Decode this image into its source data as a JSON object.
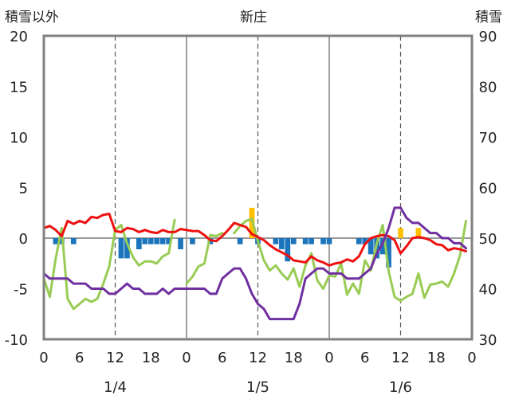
{
  "chart_data": {
    "type": "line",
    "title": "新庄",
    "left_axis_label": "積雪以外",
    "right_axis_label": "積雪",
    "left_ylim": [
      -10,
      20
    ],
    "right_ylim": [
      30,
      90
    ],
    "left_ticks": [
      "20",
      "15",
      "10",
      "5",
      "0",
      "-5",
      "-10"
    ],
    "right_ticks": [
      "90",
      "80",
      "70",
      "60",
      "50",
      "40",
      "30"
    ],
    "x_tick_labels": [
      "0",
      "6",
      "12",
      "18",
      "0",
      "6",
      "12",
      "18",
      "0",
      "6",
      "12",
      "18",
      "0"
    ],
    "date_labels": [
      "1/4",
      "1/5",
      "1/6"
    ],
    "grid": "vertical dashed at 12h, solid at 0h",
    "colors": {
      "red": "#ee1111",
      "green": "#99cc55",
      "purple": "#7030a0",
      "blue": "#1c75bc",
      "yellow": "#ffc000",
      "frame": "#808080",
      "zero_line": "#9a9a9a"
    },
    "series": [
      {
        "color_key": "red",
        "x": [
          0,
          1,
          2,
          3,
          4,
          5,
          6,
          7,
          8,
          9,
          10,
          11,
          12,
          13,
          14,
          15,
          16,
          17,
          18,
          19,
          20,
          21,
          22,
          23,
          24,
          25,
          26,
          27,
          28,
          29,
          30,
          31,
          32,
          33,
          34,
          35,
          36,
          37,
          38,
          39,
          40,
          41,
          42,
          43,
          44,
          45,
          46,
          47,
          48,
          49,
          50,
          51,
          52,
          53,
          54,
          55,
          56,
          57,
          58,
          59,
          60,
          61,
          62,
          63,
          64,
          65,
          66,
          67,
          68,
          69,
          70,
          71
        ],
        "values": [
          1.0,
          1.2,
          0.8,
          0.2,
          1.7,
          1.4,
          1.7,
          1.5,
          2.1,
          2.0,
          2.3,
          2.4,
          0.7,
          0.6,
          1.0,
          0.9,
          0.6,
          0.8,
          0.6,
          0.5,
          0.8,
          0.6,
          0.6,
          0.9,
          0.8,
          0.7,
          0.7,
          0.3,
          -0.2,
          -0.3,
          0.2,
          0.8,
          1.5,
          1.3,
          1.1,
          0.4,
          0.1,
          -0.2,
          -0.7,
          -1.1,
          -1.4,
          -1.7,
          -2.2,
          -2.3,
          -2.4,
          -1.8,
          -2.2,
          -2.4,
          -2.7,
          -2.5,
          -2.4,
          -2.1,
          -2.3,
          -1.8,
          -0.6,
          0.0,
          0.2,
          0.3,
          0.2,
          -0.2,
          -1.5,
          -0.8,
          0.0,
          0.1,
          0.0,
          -0.2,
          -0.6,
          -0.7,
          -1.2,
          -1.0,
          -1.1,
          -1.3
        ]
      },
      {
        "color_key": "green",
        "segments": [
          {
            "x": [
              0,
              1,
              2,
              3,
              4,
              5,
              6,
              7,
              8,
              9,
              10,
              11,
              12,
              13,
              14,
              15,
              16,
              17,
              18,
              19,
              20,
              21,
              22
            ],
            "values": [
              -4.0,
              -5.8,
              -2.0,
              1.0,
              -6.0,
              -7.0,
              -6.5,
              -6.0,
              -6.3,
              -6.0,
              -4.5,
              -2.8,
              0.8,
              1.3,
              -0.5,
              -1.9,
              -2.7,
              -2.3,
              -2.3,
              -2.5,
              -1.8,
              -1.5,
              1.8
            ]
          },
          {
            "x": [
              24,
              25,
              26,
              27,
              28,
              29,
              30
            ],
            "values": [
              -4.5,
              -3.8,
              -2.8,
              -2.5,
              0.3,
              0.2,
              0.5
            ]
          },
          {
            "x": [
              32,
              33,
              34,
              35,
              36,
              37,
              38,
              39,
              40,
              41,
              42,
              43,
              44,
              45,
              46,
              47,
              48,
              49,
              50,
              51,
              52,
              53,
              54,
              55,
              56,
              57,
              58,
              59,
              60,
              61,
              62,
              63,
              64,
              65,
              66,
              67,
              68,
              69,
              70,
              71
            ],
            "values": [
              0.5,
              1.2,
              1.7,
              1.9,
              -0.3,
              -2.2,
              -3.2,
              -2.7,
              -3.5,
              -4.1,
              -3.0,
              -4.8,
              -2.7,
              -1.5,
              -4.2,
              -5.0,
              -3.7,
              -3.8,
              -2.5,
              -5.6,
              -4.5,
              -5.5,
              -2.2,
              -3.2,
              -0.5,
              1.3,
              -3.3,
              -5.8,
              -6.2,
              -5.8,
              -5.5,
              -3.5,
              -5.9,
              -4.6,
              -4.5,
              -4.3,
              -4.8,
              -3.5,
              -1.7,
              1.7
            ]
          }
        ]
      },
      {
        "color_key": "purple",
        "axis": "right",
        "x": [
          0,
          1,
          2,
          3,
          4,
          5,
          6,
          7,
          8,
          9,
          10,
          11,
          12,
          13,
          14,
          15,
          16,
          17,
          18,
          19,
          20,
          21,
          22,
          23,
          24,
          25,
          26,
          27,
          28,
          29,
          30,
          31,
          32,
          33,
          34,
          35,
          36,
          37,
          38,
          39,
          40,
          41,
          42,
          43,
          44,
          45,
          46,
          47,
          48,
          49,
          50,
          51,
          52,
          53,
          54,
          55,
          56,
          57,
          58,
          59,
          60,
          61,
          62,
          63,
          64,
          65,
          66,
          67,
          68,
          69,
          70,
          71
        ],
        "values": [
          43,
          42,
          42,
          42,
          42,
          41,
          41,
          41,
          40,
          40,
          40,
          39,
          39,
          40,
          41,
          40,
          40,
          39,
          39,
          39,
          40,
          39,
          40,
          40,
          40,
          40,
          40,
          40,
          39,
          39,
          42,
          43,
          44,
          44,
          42,
          39,
          37,
          36,
          34,
          34,
          34,
          34,
          34,
          37,
          42,
          43,
          44,
          44,
          43,
          43,
          43,
          42,
          42,
          42,
          43,
          44,
          47,
          49,
          52,
          56,
          56,
          54,
          53,
          53,
          52,
          51,
          51,
          50,
          50,
          49,
          49,
          48
        ]
      }
    ],
    "bars": {
      "color_key": "blue",
      "x": [
        2,
        3,
        5,
        13,
        14,
        16,
        17,
        18,
        19,
        20,
        21,
        23,
        25,
        28,
        33,
        36,
        39,
        40,
        41,
        42,
        44,
        45,
        47,
        48,
        53,
        54,
        55,
        56,
        57,
        58
      ],
      "values": [
        -0.6,
        -0.6,
        -0.6,
        -2.0,
        -2.0,
        -1.1,
        -0.6,
        -0.6,
        -0.6,
        -0.6,
        -0.6,
        -1.1,
        -0.6,
        -0.6,
        -0.6,
        -0.6,
        -0.6,
        -1.1,
        -2.3,
        -0.6,
        -0.6,
        -0.6,
        -0.6,
        -0.6,
        -0.6,
        -0.6,
        -1.6,
        -2.0,
        -1.6,
        -2.9
      ]
    },
    "yellow_bars": {
      "color_key": "yellow",
      "x": [
        35,
        60,
        63
      ],
      "values": [
        3.0,
        1.0,
        1.0
      ]
    }
  }
}
